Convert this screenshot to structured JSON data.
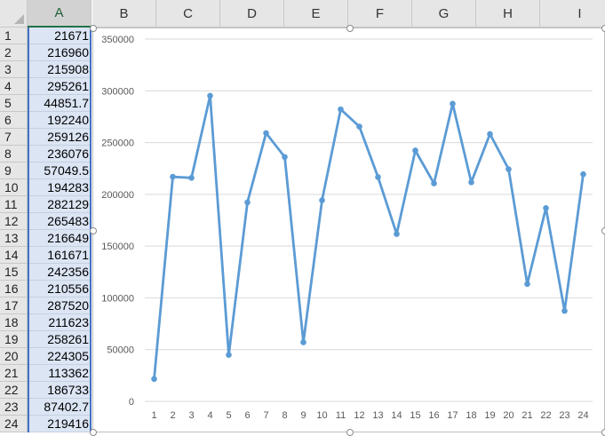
{
  "spreadsheet": {
    "columns": [
      "A",
      "B",
      "C",
      "D",
      "E",
      "F",
      "G",
      "H",
      "I"
    ],
    "rows": [
      "1",
      "2",
      "3",
      "4",
      "5",
      "6",
      "7",
      "8",
      "9",
      "10",
      "11",
      "12",
      "13",
      "14",
      "15",
      "16",
      "17",
      "18",
      "19",
      "20",
      "21",
      "22",
      "23",
      "24"
    ],
    "column_a_values": [
      "21671",
      "216960",
      "215908",
      "295261",
      "44851.7",
      "192240",
      "259126",
      "236076",
      "57049.5",
      "194283",
      "282129",
      "265483",
      "216649",
      "161671",
      "242356",
      "210556",
      "287520",
      "211623",
      "258261",
      "224305",
      "113362",
      "186733",
      "87402.7",
      "219416"
    ]
  },
  "chart_data": {
    "type": "line",
    "categories": [
      "1",
      "2",
      "3",
      "4",
      "5",
      "6",
      "7",
      "8",
      "9",
      "10",
      "11",
      "12",
      "13",
      "14",
      "15",
      "16",
      "17",
      "18",
      "19",
      "20",
      "21",
      "22",
      "23",
      "24"
    ],
    "series": [
      {
        "values": [
          21671,
          216960,
          215908,
          295261,
          44851.7,
          192240,
          259126,
          236076,
          57049.5,
          194283,
          282129,
          265483,
          216649,
          161671,
          242356,
          210556,
          287520,
          211623,
          258261,
          224305,
          113362,
          186733,
          87402.7,
          219416
        ]
      }
    ],
    "ylim": [
      0,
      350000
    ],
    "y_ticks": [
      "0",
      "50000",
      "100000",
      "150000",
      "200000",
      "250000",
      "300000",
      "350000"
    ],
    "grid": true,
    "markers": true,
    "line_color": "#5b9bd5",
    "title": "",
    "xlabel": "",
    "ylabel": ""
  },
  "colors": {
    "selection_border": "#4472c4",
    "selected_cell_fill": "#dbe5f4",
    "header_fill": "#e6e6e6",
    "gridline": "#d9d9d9"
  }
}
